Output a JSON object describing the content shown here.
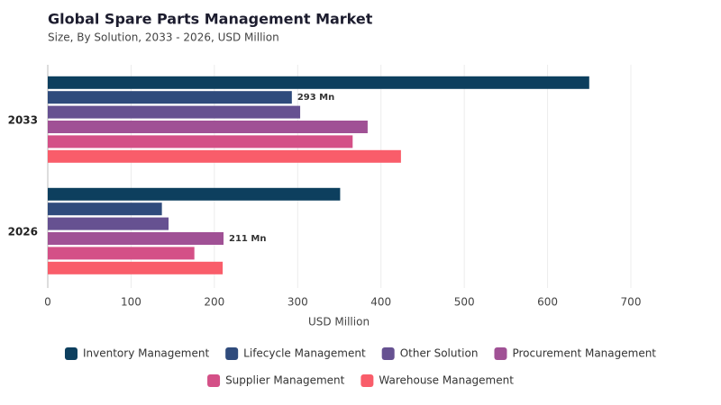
{
  "chart_data": {
    "type": "hbar",
    "title": "Global Spare Parts Management Market",
    "subtitle": "Size, By Solution, 2033 - 2026, USD Million",
    "x_label": "USD Million",
    "categories": [
      "2033",
      "2026"
    ],
    "series": [
      {
        "name": "Inventory Management",
        "color": "#0d3f5e",
        "values": [
          650,
          351
        ]
      },
      {
        "name": "Lifecycle Management",
        "color": "#2f4b7c",
        "values": [
          293,
          137
        ],
        "value_labels": [
          "293 Mn",
          null
        ]
      },
      {
        "name": "Other Solution",
        "color": "#665191",
        "values": [
          303,
          145
        ]
      },
      {
        "name": "Procurement Management",
        "color": "#a05195",
        "values": [
          384,
          211
        ],
        "value_labels": [
          null,
          "211 Mn"
        ]
      },
      {
        "name": "Supplier Management",
        "color": "#d45087",
        "values": [
          366,
          176
        ]
      },
      {
        "name": "Warehouse Management",
        "color": "#f95d6a",
        "values": [
          424,
          210
        ]
      }
    ],
    "xlim": [
      0,
      700
    ],
    "xticks": [
      0,
      100,
      200,
      300,
      400,
      500,
      600,
      700
    ],
    "grid": true,
    "legend": "bottom"
  }
}
